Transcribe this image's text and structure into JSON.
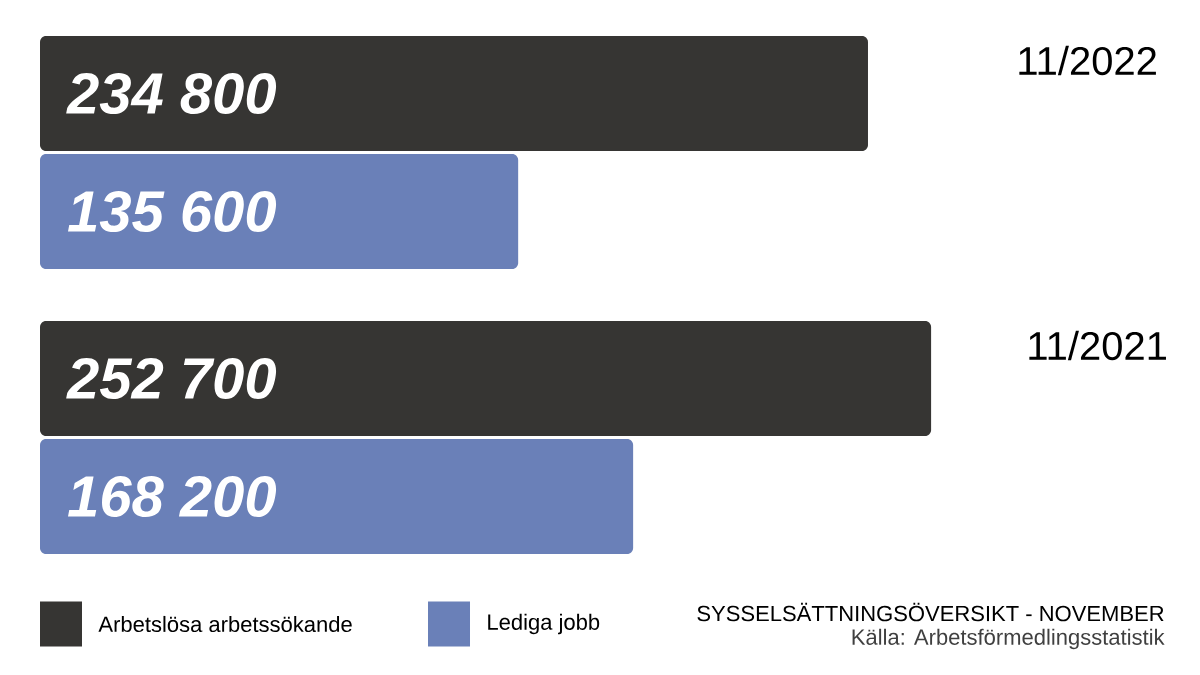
{
  "chart_data": {
    "type": "bar",
    "orientation": "horizontal",
    "title": "SYSSELSÄTTNINGSÖVERSIKT - NOVEMBER",
    "categories": [
      "11/2022",
      "11/2021"
    ],
    "series": [
      {
        "name": "Arbetslösa arbetssökande",
        "color": "#363533",
        "values": [
          234800,
          252700
        ],
        "value_labels": [
          "234 800",
          "252 700"
        ]
      },
      {
        "name": "Lediga jobb",
        "color": "#6a80b8",
        "values": [
          135600,
          168200
        ],
        "value_labels": [
          "135 600",
          "168 200"
        ]
      }
    ],
    "legend": "bottom",
    "annotations": [
      "Källa: Arbetsförmedlingsstatistik"
    ]
  }
}
